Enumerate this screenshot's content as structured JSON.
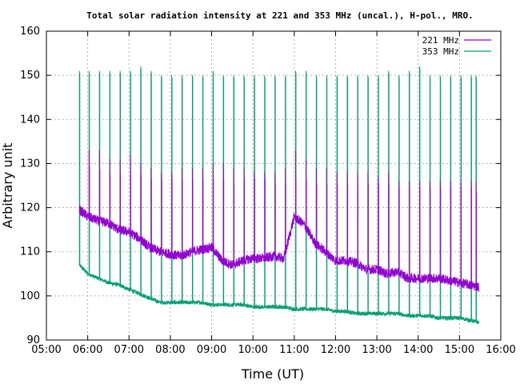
{
  "chart_data": {
    "type": "line",
    "title": "Total solar radiation intensity at 221 and 353 MHz (uncal.), H-pol., MRO.",
    "xlabel": "Time (UT)",
    "ylabel": "Arbitrary unit",
    "xlim": [
      "05:00",
      "16:00"
    ],
    "ylim": [
      90,
      160
    ],
    "xticks": [
      "05:00",
      "06:00",
      "07:00",
      "08:00",
      "09:00",
      "10:00",
      "11:00",
      "12:00",
      "13:00",
      "14:00",
      "15:00",
      "16:00"
    ],
    "yticks": [
      90,
      100,
      110,
      120,
      130,
      140,
      150,
      160
    ],
    "grid": true,
    "legend_position": "top-right",
    "calibration_interval_minutes": 15,
    "series": [
      {
        "name": "221 MHz",
        "color": "#9400d3",
        "x": [
          "05:48",
          "06:00",
          "06:15",
          "06:30",
          "06:45",
          "07:00",
          "07:15",
          "07:30",
          "07:45",
          "08:00",
          "08:15",
          "08:30",
          "08:45",
          "09:00",
          "09:15",
          "09:30",
          "09:45",
          "10:00",
          "10:15",
          "10:30",
          "10:45",
          "11:00",
          "11:15",
          "11:30",
          "11:45",
          "12:00",
          "12:15",
          "12:30",
          "12:45",
          "13:00",
          "13:15",
          "13:30",
          "13:45",
          "14:00",
          "14:15",
          "14:30",
          "14:45",
          "15:00",
          "15:15",
          "15:28"
        ],
        "values": [
          119.5,
          118,
          117,
          116.5,
          115,
          114.5,
          113,
          111,
          110,
          109.5,
          109,
          110,
          110.5,
          111,
          108,
          107,
          108,
          108.5,
          108.5,
          109,
          108.5,
          118,
          116,
          112,
          110,
          108,
          108,
          107.5,
          106,
          106,
          105,
          105.5,
          104,
          104,
          104,
          104,
          103.5,
          103,
          102.5,
          102
        ]
      },
      {
        "name": "353 MHz",
        "color": "#009e73",
        "x": [
          "05:48",
          "06:00",
          "06:15",
          "06:30",
          "06:45",
          "07:00",
          "07:15",
          "07:30",
          "07:45",
          "08:00",
          "08:15",
          "08:30",
          "08:45",
          "09:00",
          "09:15",
          "09:30",
          "09:45",
          "10:00",
          "10:15",
          "10:30",
          "10:45",
          "11:00",
          "11:15",
          "11:30",
          "11:45",
          "12:00",
          "12:15",
          "12:30",
          "12:45",
          "13:00",
          "13:15",
          "13:30",
          "13:45",
          "14:00",
          "14:15",
          "14:30",
          "14:45",
          "15:00",
          "15:15",
          "15:28"
        ],
        "values": [
          107,
          105,
          104,
          103,
          102.5,
          101.5,
          100.5,
          99.5,
          98.5,
          98.5,
          98.5,
          98.5,
          98.5,
          98,
          98,
          98,
          98,
          97.5,
          97.5,
          97.5,
          97.5,
          97,
          97,
          97,
          97,
          96.5,
          96.5,
          96,
          96,
          96,
          96,
          96,
          95.5,
          95.5,
          95.5,
          95,
          95,
          95,
          94.5,
          94
        ]
      }
    ],
    "calibration_spikes": {
      "x": [
        "05:48",
        "06:02",
        "06:17",
        "06:32",
        "06:47",
        "07:02",
        "07:17",
        "07:32",
        "07:47",
        "08:02",
        "08:17",
        "08:32",
        "08:47",
        "09:02",
        "09:17",
        "09:32",
        "09:47",
        "10:02",
        "10:17",
        "10:32",
        "10:47",
        "11:02",
        "11:17",
        "11:32",
        "11:47",
        "12:02",
        "12:17",
        "12:32",
        "12:47",
        "13:02",
        "13:17",
        "13:32",
        "13:47",
        "14:02",
        "14:17",
        "14:32",
        "14:47",
        "15:02",
        "15:17",
        "15:24"
      ],
      "peak_353": [
        151,
        151,
        151,
        151,
        151,
        151,
        152,
        151,
        150,
        150,
        150,
        150,
        150,
        151,
        150,
        150,
        150,
        150,
        150,
        150,
        150,
        151,
        151,
        150,
        150,
        150,
        150,
        150,
        150,
        150,
        151,
        150,
        151,
        152,
        150,
        150,
        150,
        150,
        150,
        150
      ],
      "peak_221": [
        0,
        133,
        133,
        131,
        131,
        132,
        130,
        129,
        128,
        128,
        129,
        129,
        129,
        130,
        130,
        129,
        129,
        128,
        128,
        128,
        129,
        133,
        131,
        129,
        129,
        128,
        128,
        128,
        128,
        127,
        128,
        126,
        126,
        126,
        126,
        126,
        126,
        126,
        126,
        126
      ],
      "plateau_221": [
        0,
        128,
        127,
        126,
        126,
        126,
        126,
        125,
        125,
        125,
        125,
        125,
        125,
        125,
        125,
        124,
        125,
        125,
        125,
        124,
        124,
        125,
        125,
        124,
        124,
        124,
        124,
        124,
        124,
        124,
        124,
        123,
        123,
        123,
        123,
        123,
        123,
        123,
        123,
        122
      ]
    }
  }
}
